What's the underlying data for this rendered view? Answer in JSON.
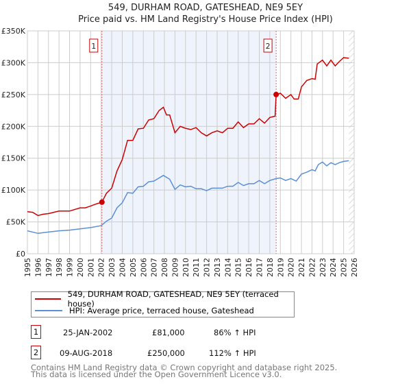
{
  "title": "549, DURHAM ROAD, GATESHEAD, NE9 5EY",
  "subtitle": "Price paid vs. HM Land Registry's House Price Index (HPI)",
  "chart_data": {
    "type": "line",
    "xlim": [
      1995,
      2026
    ],
    "ylim": [
      0,
      350000
    ],
    "yticks": [
      {
        "v": 0,
        "l": "£0"
      },
      {
        "v": 50000,
        "l": "£50K"
      },
      {
        "v": 100000,
        "l": "£100K"
      },
      {
        "v": 150000,
        "l": "£150K"
      },
      {
        "v": 200000,
        "l": "£200K"
      },
      {
        "v": 250000,
        "l": "£250K"
      },
      {
        "v": 300000,
        "l": "£300K"
      },
      {
        "v": 350000,
        "l": "£350K"
      }
    ],
    "xticks": [
      "1995",
      "1996",
      "1997",
      "1998",
      "1999",
      "2000",
      "2001",
      "2002",
      "2003",
      "2004",
      "2005",
      "2006",
      "2007",
      "2008",
      "2009",
      "2010",
      "2011",
      "2012",
      "2013",
      "2014",
      "2015",
      "2016",
      "2017",
      "2018",
      "2019",
      "2020",
      "2021",
      "2022",
      "2023",
      "2024",
      "2025",
      "2026"
    ],
    "shaded_range": [
      2002.07,
      2018.6
    ],
    "forecast_from": 2025.5,
    "series": [
      {
        "name": "549, DURHAM ROAD, GATESHEAD, NE9 5EY (terraced house)",
        "color": "#cc0000",
        "x": [
          1995,
          1995.5,
          1996,
          1996.5,
          1997,
          1997.5,
          1998,
          1999,
          2000,
          2000.5,
          2001,
          2001.5,
          2002.07,
          2002.5,
          2003,
          2003.5,
          2004,
          2004.5,
          2005,
          2005.5,
          2006,
          2006.5,
          2007,
          2007.5,
          2007.9,
          2008.2,
          2008.5,
          2009,
          2009.5,
          2010,
          2010.5,
          2011,
          2011.5,
          2012,
          2012.5,
          2013,
          2013.5,
          2014,
          2014.5,
          2015,
          2015.5,
          2016,
          2016.5,
          2017,
          2017.5,
          2018,
          2018.5,
          2018.6,
          2019,
          2019.5,
          2020,
          2020.3,
          2020.7,
          2021,
          2021.5,
          2022,
          2022.3,
          2022.5,
          2023,
          2023.4,
          2023.8,
          2024.2,
          2024.6,
          2025,
          2025.5
        ],
        "y": [
          66000,
          65000,
          60000,
          62000,
          63000,
          65000,
          67000,
          67000,
          72000,
          72000,
          75000,
          78000,
          81000,
          95000,
          103000,
          130000,
          148000,
          178000,
          178000,
          196000,
          197000,
          210000,
          212000,
          225000,
          230000,
          218000,
          218000,
          190000,
          200000,
          197000,
          195000,
          198000,
          190000,
          185000,
          190000,
          193000,
          190000,
          197000,
          197000,
          207000,
          198000,
          204000,
          204000,
          212000,
          205000,
          214000,
          216000,
          250000,
          252000,
          244000,
          250000,
          243000,
          243000,
          262000,
          272000,
          275000,
          274000,
          298000,
          304000,
          295000,
          304000,
          295000,
          302000,
          308000,
          307000
        ]
      },
      {
        "name": "HPI: Average price, terraced house, Gateshead",
        "color": "#5b8fd6",
        "x": [
          1995,
          1996,
          1997,
          1998,
          1999,
          2000,
          2001,
          2002,
          2002.5,
          2003,
          2003.5,
          2004,
          2004.5,
          2005,
          2005.5,
          2006,
          2006.5,
          2007,
          2007.9,
          2008.5,
          2009,
          2009.5,
          2010,
          2010.5,
          2011,
          2011.5,
          2012,
          2012.5,
          2013,
          2013.5,
          2014,
          2014.5,
          2015,
          2015.5,
          2016,
          2016.5,
          2017,
          2017.5,
          2018,
          2018.6,
          2019,
          2019.5,
          2020,
          2020.5,
          2021,
          2021.5,
          2022,
          2022.3,
          2022.6,
          2023,
          2023.4,
          2023.8,
          2024.2,
          2024.6,
          2025,
          2025.5
        ],
        "y": [
          36000,
          32000,
          34000,
          36000,
          37000,
          39000,
          41000,
          44000,
          51000,
          56000,
          72000,
          80000,
          96000,
          95000,
          105000,
          106000,
          113000,
          114000,
          123000,
          117000,
          101000,
          108000,
          105000,
          106000,
          102000,
          102000,
          99000,
          103000,
          103000,
          103000,
          106000,
          106000,
          112000,
          107000,
          110000,
          110000,
          115000,
          110000,
          115000,
          118000,
          119000,
          115000,
          118000,
          114000,
          125000,
          128000,
          132000,
          130000,
          140000,
          144000,
          138000,
          143000,
          140000,
          143000,
          145000,
          146000
        ]
      }
    ],
    "sales": [
      {
        "label": "1",
        "x": 2002.07,
        "y": 81000
      },
      {
        "label": "2",
        "x": 2018.6,
        "y": 250000
      }
    ]
  },
  "legend": {
    "red": "549, DURHAM ROAD, GATESHEAD, NE9 5EY (terraced house)",
    "blue": "HPI: Average price, terraced house, Gateshead"
  },
  "transactions": [
    {
      "num": "1",
      "date": "25-JAN-2002",
      "price": "£81,000",
      "hpi": "86% ↑ HPI"
    },
    {
      "num": "2",
      "date": "09-AUG-2018",
      "price": "£250,000",
      "hpi": "112% ↑ HPI"
    }
  ],
  "footer": [
    "Contains HM Land Registry data © Crown copyright and database right 2025.",
    "This data is licensed under the Open Government Licence v3.0."
  ]
}
